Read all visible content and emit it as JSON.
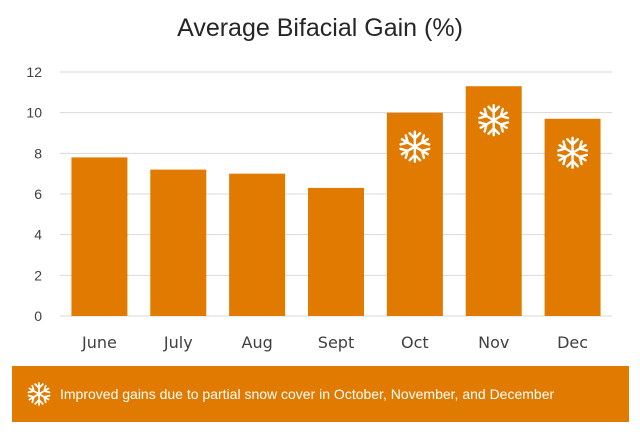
{
  "colors": {
    "bar": "#E07A00",
    "grid": "#D9D9D9",
    "text": "#404040",
    "snowflake": "#FFFFFF",
    "footnote_bg": "#E07A00"
  },
  "footnote": {
    "icon": "snowflake-icon",
    "text": "Improved gains due to partial snow cover in October, November, and December"
  },
  "chart_data": {
    "type": "bar",
    "title": "Average Bifacial Gain (%)",
    "xlabel": "",
    "ylabel": "",
    "categories": [
      "June",
      "July",
      "Aug",
      "Sept",
      "Oct",
      "Nov",
      "Dec"
    ],
    "values": [
      7.8,
      7.2,
      7.0,
      6.3,
      10.0,
      11.3,
      9.7
    ],
    "snow_marked": [
      "Oct",
      "Nov",
      "Dec"
    ],
    "ylim": [
      0,
      12
    ],
    "yticks": [
      0,
      2,
      4,
      6,
      8,
      10,
      12
    ],
    "grid": true,
    "legend": "none"
  }
}
